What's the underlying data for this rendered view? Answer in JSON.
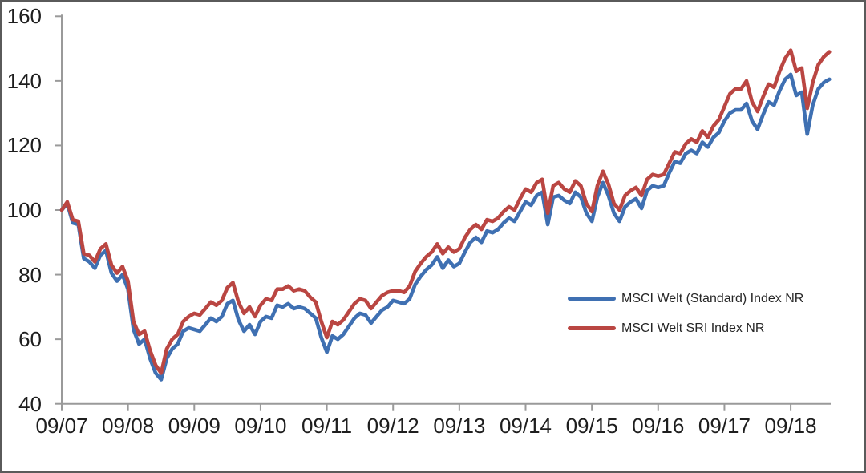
{
  "chart_data": {
    "type": "line",
    "title": "",
    "x_interval": "monthly",
    "x_start_label": "09/07",
    "x_end_label": "04/19",
    "x_tick_labels": [
      "09/07",
      "09/08",
      "09/09",
      "09/10",
      "09/11",
      "09/12",
      "09/13",
      "09/14",
      "09/15",
      "09/16",
      "09/17",
      "09/18"
    ],
    "x_tick_month_indexes": [
      0,
      12,
      24,
      36,
      48,
      60,
      72,
      84,
      96,
      108,
      120,
      132
    ],
    "y_ticks": [
      40,
      60,
      80,
      100,
      120,
      140,
      160
    ],
    "ylim": [
      40,
      160
    ],
    "grid": false,
    "legend_position": "right-center",
    "axis_color": "#9a9a9a",
    "text_color": "#1e1e1e",
    "series": [
      {
        "name": "MSCI Welt (Standard) Index NR",
        "color": "#3f70b2",
        "values": [
          100,
          102,
          96,
          95.5,
          85,
          84,
          82,
          86,
          87.5,
          80.5,
          78,
          80,
          75.5,
          63,
          58.5,
          60,
          54,
          49.5,
          47.5,
          54,
          57,
          58.5,
          62.5,
          63.5,
          63,
          62.5,
          64.5,
          66.5,
          65.5,
          67,
          71,
          72,
          66,
          62.5,
          64.5,
          61.5,
          65.5,
          67,
          66.5,
          70.5,
          70,
          71,
          69.5,
          70,
          69.5,
          68,
          66.5,
          60.5,
          56,
          61,
          60,
          61.5,
          64,
          66.5,
          68,
          67.5,
          65,
          67,
          69,
          70,
          72,
          71.5,
          71,
          72.5,
          77,
          79.5,
          81.5,
          83,
          85.5,
          82,
          84.5,
          82.5,
          83.5,
          87,
          90,
          91.5,
          90,
          93.5,
          93,
          94,
          96,
          97.5,
          96.5,
          99.5,
          102.5,
          101.5,
          104.5,
          105.5,
          95.5,
          104,
          104.5,
          103,
          102,
          105.5,
          104,
          99,
          96.5,
          104,
          108.5,
          104.5,
          99,
          96.5,
          101,
          102.5,
          103.5,
          100.5,
          106,
          107.5,
          107,
          107.5,
          111.5,
          115,
          114.5,
          117.5,
          118.5,
          117.5,
          121,
          119.5,
          122.5,
          124,
          127.5,
          130,
          131,
          131,
          133,
          127.5,
          125,
          129.5,
          133.5,
          132.5,
          137,
          140.5,
          142,
          135.5,
          136.5,
          123.5,
          132.5,
          137.5,
          139.5,
          140.5
        ]
      },
      {
        "name": "MSCI Welt SRI Index NR",
        "color": "#ba4642",
        "values": [
          100,
          102.5,
          97,
          96.5,
          86.5,
          86,
          84,
          88,
          89.5,
          83,
          80.5,
          82.5,
          78,
          65.5,
          61.5,
          62.5,
          56.5,
          52,
          49.5,
          57,
          60,
          61.5,
          65.5,
          67,
          68,
          67.5,
          69.5,
          71.5,
          70.5,
          72,
          76,
          77.5,
          71.5,
          68,
          70,
          67,
          70.5,
          72.5,
          72,
          75.5,
          75.5,
          76.5,
          75,
          75.5,
          75,
          73,
          71.5,
          65.5,
          60.5,
          65.5,
          64.5,
          66,
          68.5,
          71,
          72.5,
          72,
          69.5,
          71.5,
          73.5,
          74.5,
          75,
          75,
          74.5,
          76.5,
          81,
          83.5,
          85.5,
          87,
          89.5,
          86.5,
          88.5,
          87,
          88,
          91.5,
          94,
          95.5,
          94,
          97,
          96.5,
          97.5,
          99.5,
          101,
          100,
          103.5,
          106.5,
          105.5,
          108.5,
          109.5,
          99,
          107.5,
          108.5,
          106.5,
          105.5,
          109,
          107.5,
          102,
          99.5,
          107.5,
          112,
          108,
          102,
          100,
          104.5,
          106,
          107,
          104.5,
          109.5,
          111,
          110.5,
          111,
          114.5,
          118,
          117.5,
          120.5,
          122,
          121,
          124.5,
          122.5,
          126,
          128,
          132,
          136,
          137.5,
          137.5,
          140,
          133.5,
          130.5,
          135,
          139,
          138,
          143,
          147,
          149.5,
          143,
          144,
          131.5,
          139.5,
          145,
          147.5,
          149
        ]
      }
    ]
  }
}
